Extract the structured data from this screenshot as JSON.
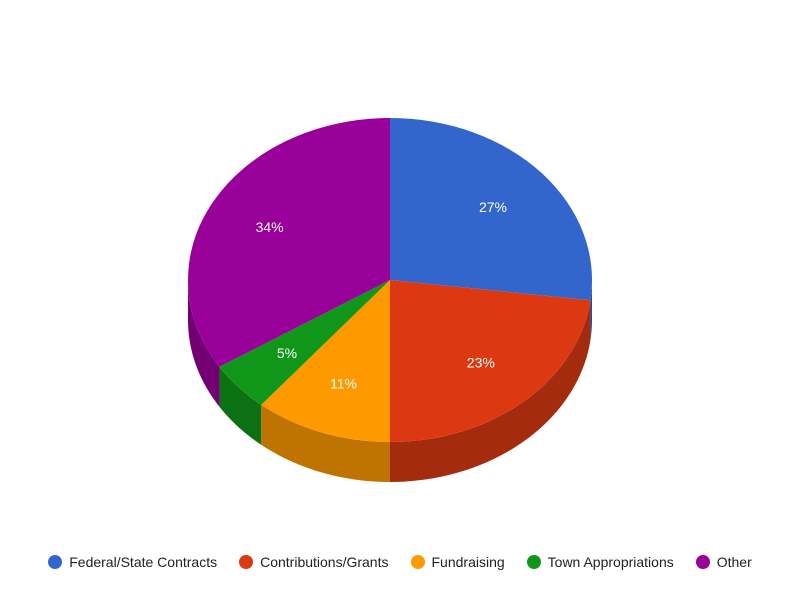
{
  "chart_data": {
    "type": "pie",
    "style": "3d",
    "title": "",
    "legend_position": "bottom",
    "slices": [
      {
        "label": "Federal/State Contracts",
        "value": 27,
        "display": "27%",
        "color": "#3366cc",
        "side_color": "#264d99"
      },
      {
        "label": "Contributions/Grants",
        "value": 23,
        "display": "23%",
        "color": "#dc3912",
        "side_color": "#a52b0e"
      },
      {
        "label": "Fundraising",
        "value": 11,
        "display": "11%",
        "color": "#ff9900",
        "side_color": "#bf7300"
      },
      {
        "label": "Town Appropriations",
        "value": 5,
        "display": "5%",
        "color": "#109618",
        "side_color": "#0c7112"
      },
      {
        "label": "Other",
        "value": 34,
        "display": "34%",
        "color": "#990099",
        "side_color": "#730073"
      }
    ]
  }
}
